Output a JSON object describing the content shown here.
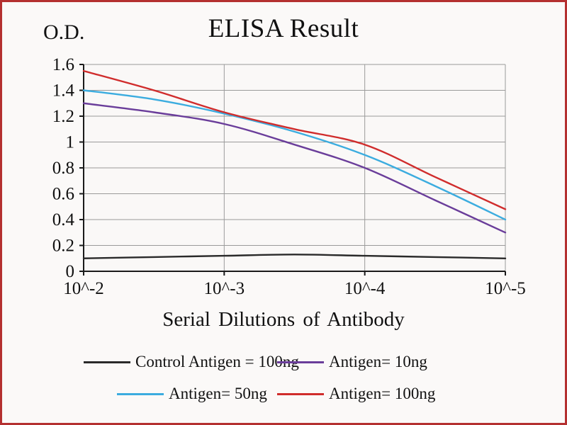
{
  "page": {
    "background": "#fbf9f8",
    "frame_color": "#b43030"
  },
  "chart_data": {
    "type": "line",
    "title": "ELISA Result",
    "ylabel": "O.D.",
    "xlabel": "Serial Dilutions  of Antibody",
    "x_tick_labels": [
      "10^-2",
      "10^-3",
      "10^-4",
      "10^-5"
    ],
    "y_tick_labels": [
      "0",
      "0.2",
      "0.4",
      "0.6",
      "0.8",
      "1",
      "1.2",
      "1.4",
      "1.6"
    ],
    "y_ticks": [
      0,
      0.2,
      0.4,
      0.6,
      0.8,
      1.0,
      1.2,
      1.4,
      1.6
    ],
    "ylim": [
      0,
      1.6
    ],
    "x_scale": "log-dilution",
    "grid": true,
    "grid_color": "#9a9a9a",
    "axis_color": "#1a1a1a",
    "legend_position": "bottom",
    "sample_positions": [
      0,
      0.5,
      1,
      1.5,
      2,
      2.5,
      3
    ],
    "series": [
      {
        "name": "Control Antigen = 100ng",
        "color": "#2a2a2a",
        "values": [
          0.1,
          0.11,
          0.12,
          0.13,
          0.12,
          0.11,
          0.1
        ],
        "values_at_ticks": [
          0.1,
          0.12,
          0.12,
          0.1
        ]
      },
      {
        "name": "Antigen= 10ng",
        "color": "#6a3d9a",
        "values": [
          1.3,
          1.23,
          1.14,
          0.98,
          0.8,
          0.55,
          0.3
        ],
        "values_at_ticks": [
          1.3,
          1.14,
          0.8,
          0.3
        ]
      },
      {
        "name": "Antigen= 50ng",
        "color": "#3bacdf",
        "values": [
          1.4,
          1.33,
          1.22,
          1.08,
          0.9,
          0.66,
          0.4
        ],
        "values_at_ticks": [
          1.4,
          1.22,
          0.9,
          0.4
        ]
      },
      {
        "name": "Antigen= 100ng",
        "color": "#d02c2c",
        "values": [
          1.55,
          1.4,
          1.23,
          1.1,
          0.98,
          0.73,
          0.48
        ],
        "values_at_ticks": [
          1.55,
          1.23,
          0.98,
          0.48
        ]
      }
    ]
  }
}
